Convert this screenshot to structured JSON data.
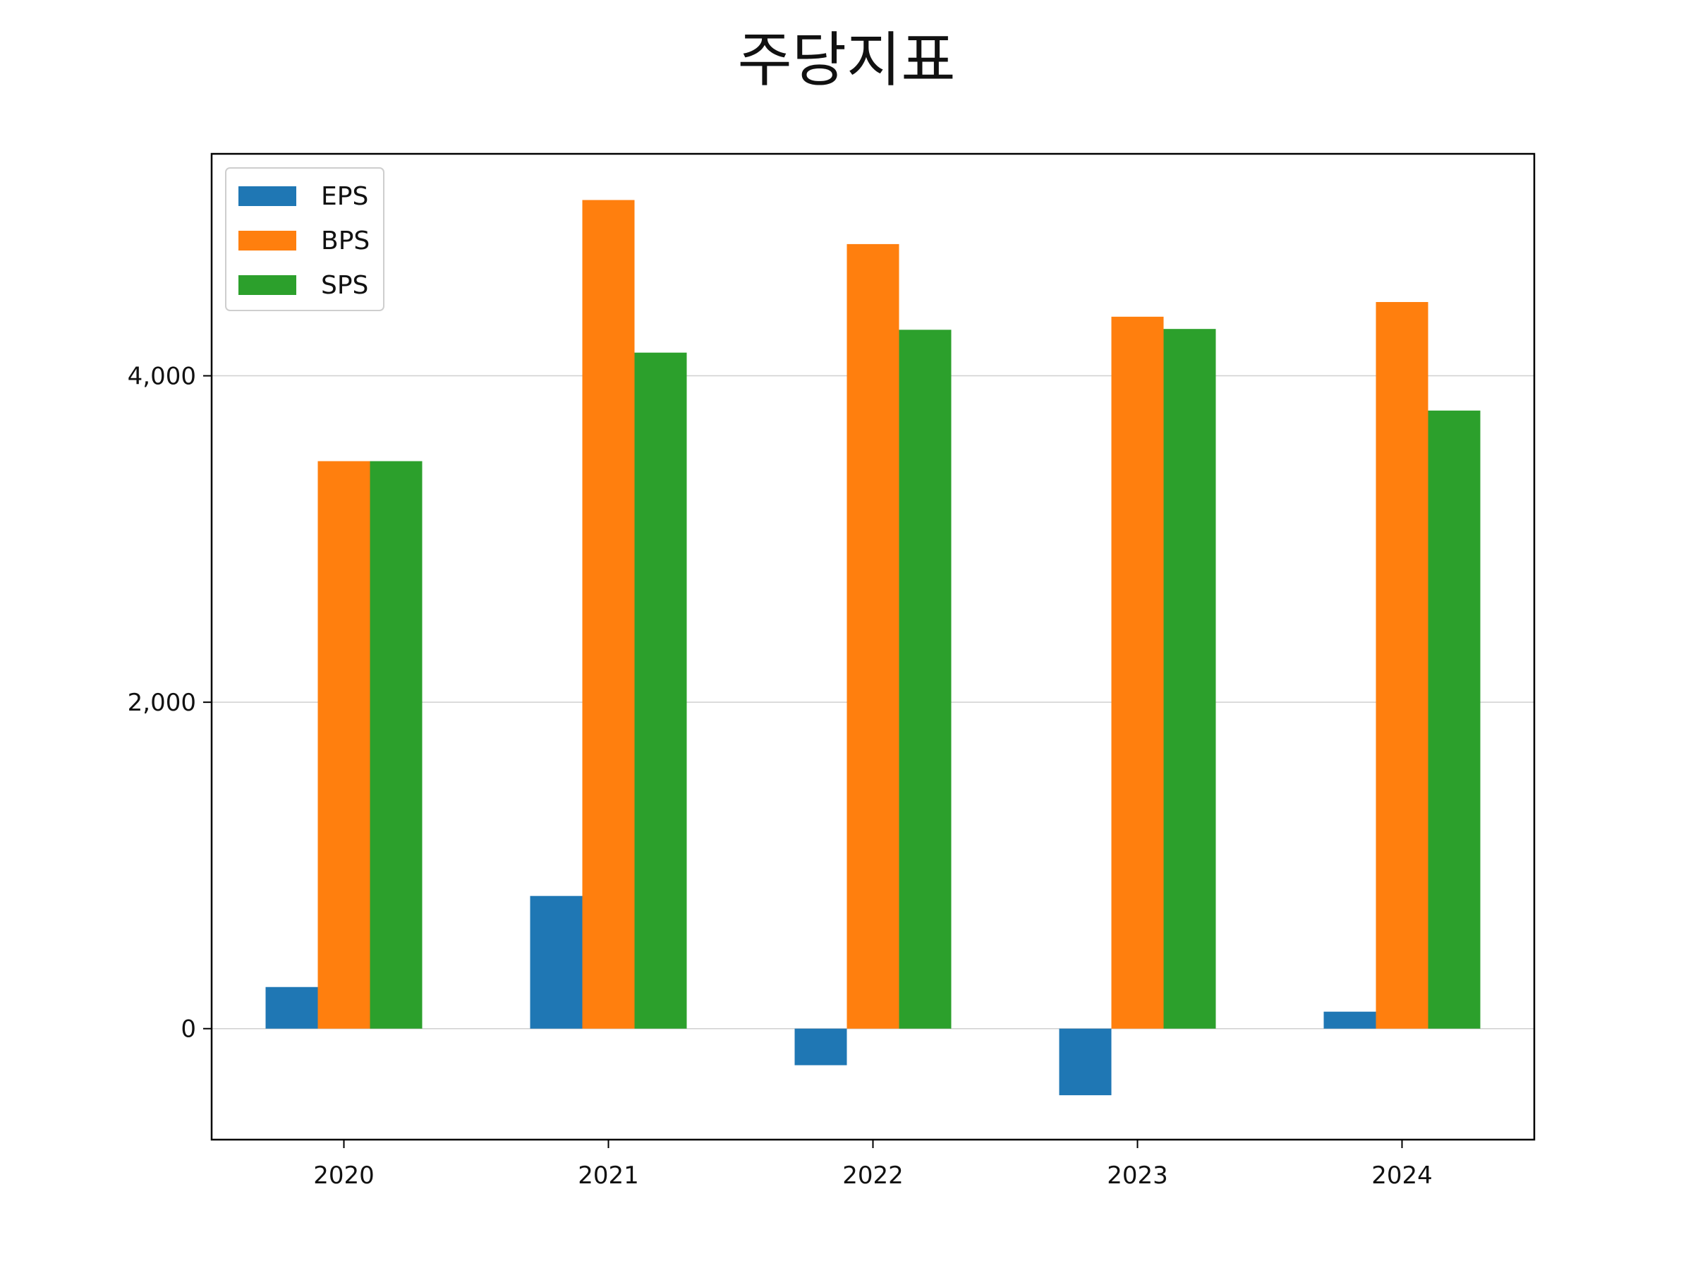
{
  "chart_data": {
    "type": "bar",
    "title": "주당지표",
    "categories": [
      "2020",
      "2021",
      "2022",
      "2023",
      "2024"
    ],
    "series": [
      {
        "name": "EPS",
        "color": "#1f77b4",
        "values": [
          255,
          813,
          -224,
          -408,
          104
        ]
      },
      {
        "name": "BPS",
        "color": "#ff7f0e",
        "values": [
          3477,
          5077,
          4807,
          4362,
          4452
        ]
      },
      {
        "name": "SPS",
        "color": "#2ca02c",
        "values": [
          3477,
          4142,
          4282,
          4287,
          3787
        ]
      }
    ],
    "ylim": [
      -680,
      5360
    ],
    "yticks": [
      0,
      2000,
      4000
    ],
    "ytick_labels": [
      "0",
      "2,000",
      "4,000"
    ],
    "grid": "y",
    "legend": "top-left",
    "xlabel": "",
    "ylabel": ""
  }
}
